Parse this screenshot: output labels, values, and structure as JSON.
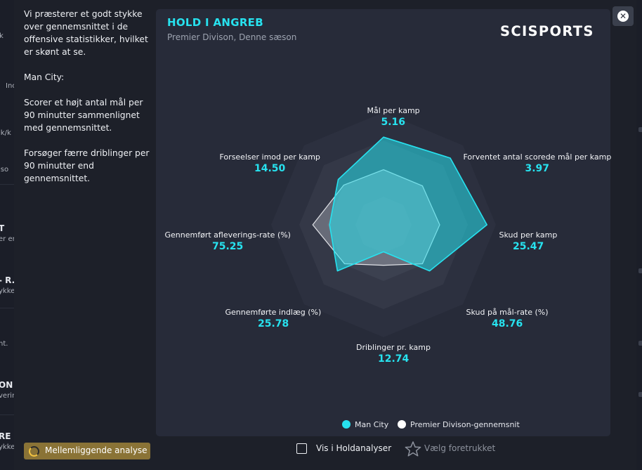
{
  "background_fragments": [
    "k",
    "Inc",
    "lk/k",
    "iso",
    "T",
    "er en",
    "- R.",
    "ykke",
    "nt.",
    "ON",
    "vering",
    "RE",
    "ykke"
  ],
  "sidebar": {
    "paragraphs": [
      "Vi præsterer et godt stykke over gennemsnittet i de offensive statistikker, hvilket er skønt at se.",
      "Man City:",
      "Scorer et højt antal mål per 90 minutter sammenlignet med gennemsnittet.",
      "Forsøger færre driblinger per 90 minutter end gennemsnittet."
    ]
  },
  "card": {
    "title": "HOLD I ANGREB",
    "subtitle": "Premier Divison, Denne sæson",
    "logo": "SCISPORTS"
  },
  "close_icon": "close-icon",
  "chart_data": {
    "type": "radar",
    "axes": [
      {
        "label": "Mål per kamp",
        "value": "5.16"
      },
      {
        "label": "Forventet antal scorede mål per kamp",
        "value": "3.97"
      },
      {
        "label": "Skud per kamp",
        "value": "25.47"
      },
      {
        "label": "Skud på mål-rate (%)",
        "value": "48.76"
      },
      {
        "label": "Driblinger pr. kamp",
        "value": "12.74"
      },
      {
        "label": "Gennemførte indlæg (%)",
        "value": "25.78"
      },
      {
        "label": "Gennemført afleverings-rate (%)",
        "value": "75.25"
      },
      {
        "label": "Forseelser imod per kamp",
        "value": "14.50"
      }
    ],
    "rings": 4,
    "scale_max": 1,
    "series": [
      {
        "name": "Man City",
        "color": "#27e2ef",
        "values": [
          0.78,
          0.84,
          0.92,
          0.58,
          0.24,
          0.58,
          0.48,
          0.57
        ]
      },
      {
        "name": "Premier Divison-gennemsnit",
        "color": "#ffffff",
        "values": [
          0.49,
          0.49,
          0.5,
          0.49,
          0.36,
          0.49,
          0.63,
          0.5
        ]
      }
    ]
  },
  "legend": [
    {
      "label": "Man City",
      "color": "#27e2ef"
    },
    {
      "label": "Premier Divison-gennemsnit",
      "color": "#ffffff"
    }
  ],
  "footer": {
    "analysis_button": "Mellemliggende analyse",
    "checkbox_label": "Vis i Holdanalyser",
    "favorite_label": "Vælg foretrukket"
  }
}
